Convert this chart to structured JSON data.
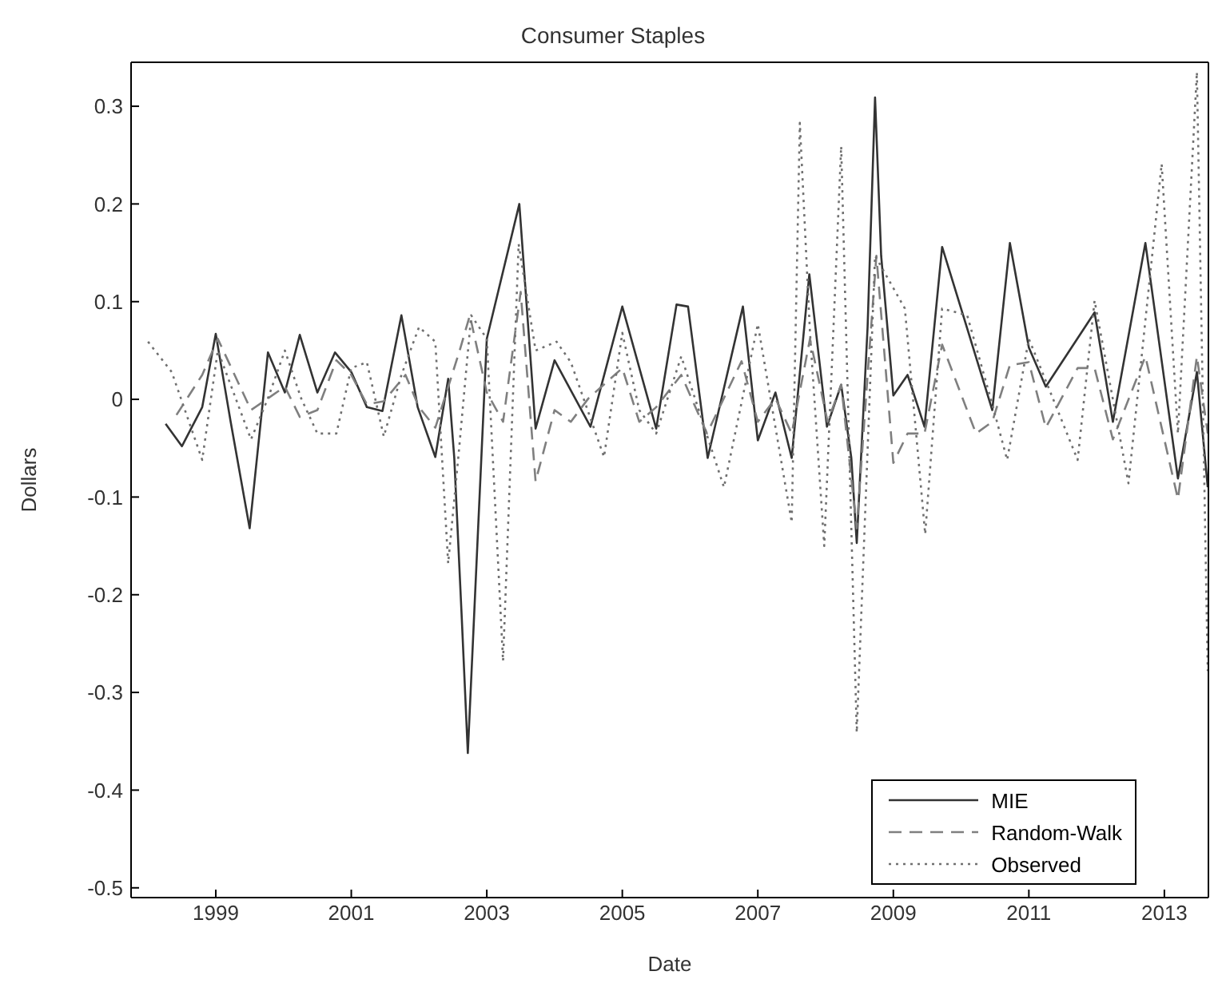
{
  "chart_data": {
    "type": "line",
    "title": "Consumer Staples",
    "xlabel": "Date",
    "ylabel": "Dollars",
    "xlim": [
      1997.75,
      2013.65
    ],
    "xticks": [
      1999,
      2001,
      2003,
      2005,
      2007,
      2009,
      2011,
      2013
    ],
    "ylim": [
      -0.51,
      0.345
    ],
    "yticks": [
      -0.5,
      -0.4,
      -0.3,
      -0.2,
      -0.1,
      0,
      0.1,
      0.2,
      0.3
    ],
    "legend": "bottom right",
    "series": [
      {
        "name": "MIE",
        "color": "#333333",
        "line_style": "solid",
        "x": [
          1998.26,
          1998.5,
          1998.8,
          1999.0,
          1999.22,
          1999.5,
          1999.77,
          2000.02,
          2000.24,
          2000.5,
          2000.76,
          2001.0,
          2001.23,
          2001.46,
          2001.74,
          2001.98,
          2002.24,
          2002.43,
          2002.52,
          2002.63,
          2002.72,
          2003.0,
          2003.48,
          2003.72,
          2004.0,
          2004.53,
          2005.0,
          2005.5,
          2005.8,
          2005.97,
          2006.26,
          2006.78,
          2007.0,
          2007.26,
          2007.5,
          2007.76,
          2008.02,
          2008.23,
          2008.38,
          2008.46,
          2008.62,
          2008.73,
          2008.82,
          2009.0,
          2009.21,
          2009.46,
          2009.72,
          2010.46,
          2010.72,
          2011.0,
          2011.25,
          2011.97,
          2012.24,
          2012.72,
          2013.2,
          2013.48,
          2013.64
        ],
        "values": [
          -0.025,
          -0.048,
          -0.008,
          0.067,
          -0.023,
          -0.132,
          0.048,
          0.007,
          0.066,
          0.007,
          0.048,
          0.028,
          -0.008,
          -0.012,
          0.086,
          -0.008,
          -0.059,
          0.021,
          -0.06,
          -0.223,
          -0.362,
          0.062,
          0.2,
          -0.03,
          0.04,
          -0.028,
          0.095,
          -0.03,
          0.097,
          0.095,
          -0.06,
          0.095,
          -0.042,
          0.007,
          -0.06,
          0.128,
          -0.028,
          0.015,
          -0.06,
          -0.147,
          0.074,
          0.309,
          0.147,
          0.004,
          0.025,
          -0.028,
          0.156,
          -0.011,
          0.16,
          0.053,
          0.013,
          0.089,
          -0.023,
          0.16,
          -0.081,
          0.028,
          -0.09
        ]
      },
      {
        "name": "Random-Walk",
        "color": "#7f7f7f",
        "line_style": "dashed",
        "x": [
          1998.42,
          1998.8,
          1999.03,
          1999.52,
          2000.02,
          2000.24,
          2000.5,
          2000.78,
          2001.0,
          2001.23,
          2001.48,
          2001.8,
          2002.0,
          2002.24,
          2002.6,
          2002.75,
          2003.0,
          2003.24,
          2003.5,
          2003.72,
          2004.0,
          2004.24,
          2004.5,
          2005.0,
          2005.25,
          2005.5,
          2005.87,
          2006.25,
          2006.76,
          2007.0,
          2007.26,
          2007.5,
          2007.77,
          2008.03,
          2008.23,
          2008.46,
          2008.62,
          2008.75,
          2009.0,
          2009.21,
          2009.46,
          2009.72,
          2010.22,
          2010.46,
          2010.72,
          2011.0,
          2011.25,
          2011.72,
          2011.97,
          2012.24,
          2012.72,
          2013.2,
          2013.48,
          2013.64
        ],
        "values": [
          -0.016,
          0.025,
          0.062,
          -0.011,
          0.013,
          -0.018,
          -0.011,
          0.04,
          0.025,
          -0.005,
          -0.002,
          0.025,
          -0.008,
          -0.029,
          0.05,
          0.086,
          0.007,
          -0.023,
          0.11,
          -0.084,
          -0.011,
          -0.023,
          0.001,
          0.032,
          -0.023,
          -0.008,
          0.025,
          -0.035,
          0.039,
          -0.023,
          0.001,
          -0.035,
          0.062,
          -0.023,
          0.015,
          -0.132,
          0.025,
          0.147,
          -0.065,
          -0.035,
          -0.035,
          0.056,
          -0.035,
          -0.023,
          0.035,
          0.038,
          -0.029,
          0.032,
          0.032,
          -0.041,
          0.044,
          -0.102,
          0.044,
          -0.035
        ]
      },
      {
        "name": "Observed",
        "color": "#707070",
        "line_style": "dotted",
        "x": [
          1998.0,
          1998.35,
          1998.8,
          1999.03,
          1999.52,
          1999.77,
          2000.02,
          2000.26,
          2000.5,
          2000.78,
          2001.0,
          2001.23,
          2001.48,
          2001.74,
          2002.0,
          2002.24,
          2002.43,
          2002.58,
          2002.77,
          2003.0,
          2003.24,
          2003.47,
          2003.72,
          2004.03,
          2004.24,
          2004.73,
          2005.0,
          2005.25,
          2005.5,
          2005.87,
          2006.5,
          2007.0,
          2007.5,
          2007.62,
          2007.77,
          2007.98,
          2008.23,
          2008.46,
          2008.73,
          2009.17,
          2009.47,
          2009.72,
          2010.09,
          2010.46,
          2010.68,
          2011.0,
          2011.72,
          2011.97,
          2012.47,
          2012.96,
          2013.2,
          2013.48,
          2013.64
        ],
        "values": [
          0.059,
          0.028,
          -0.062,
          0.05,
          -0.041,
          0.001,
          0.05,
          0.001,
          -0.035,
          -0.035,
          0.032,
          0.038,
          -0.038,
          0.025,
          0.074,
          0.059,
          -0.168,
          -0.059,
          0.086,
          0.062,
          -0.268,
          0.159,
          0.05,
          0.059,
          0.038,
          -0.059,
          0.068,
          -0.011,
          -0.035,
          0.044,
          -0.09,
          0.077,
          -0.126,
          0.283,
          0.068,
          -0.15,
          0.259,
          -0.341,
          0.147,
          0.093,
          -0.138,
          0.093,
          0.086,
          -0.005,
          -0.062,
          0.062,
          -0.062,
          0.101,
          -0.086,
          0.241,
          -0.035,
          0.335,
          -0.278
        ]
      }
    ]
  }
}
